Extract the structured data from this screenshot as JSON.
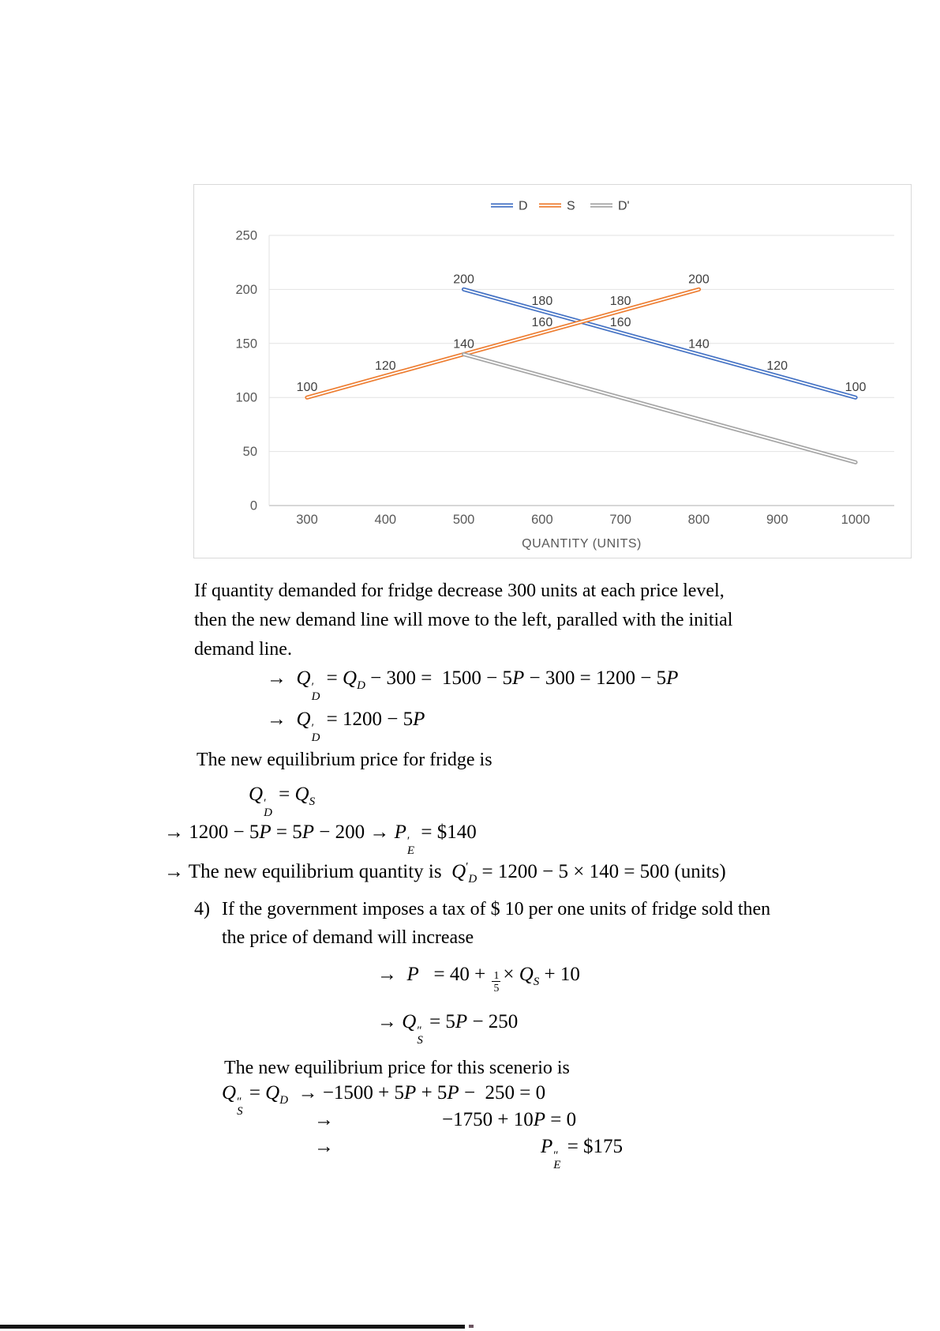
{
  "chart_data": {
    "type": "line",
    "title": "",
    "xlabel": "QUANTITY (UNITS)",
    "ylabel": "",
    "x_ticks": [
      300,
      400,
      500,
      600,
      700,
      800,
      900,
      1000
    ],
    "y_ticks": [
      0,
      50,
      100,
      150,
      200,
      250
    ],
    "ylim": [
      0,
      250
    ],
    "grid": "horizontal",
    "legend_position": "top",
    "colors": {
      "axis": "#BFBFBF",
      "gridline": "#E2E2E2",
      "tick_text": "#595959",
      "label_text": "#404040",
      "border": "#D9D9D9"
    },
    "legend": [
      {
        "label": "D",
        "color": "#4472C4"
      },
      {
        "label": "S",
        "color": "#ED7D31"
      },
      {
        "label": "D'",
        "color": "#A5A5A5"
      }
    ],
    "series": [
      {
        "name": "D",
        "color": "#4472C4",
        "points": [
          [
            500,
            200
          ],
          [
            600,
            180
          ],
          [
            700,
            160
          ],
          [
            800,
            140
          ],
          [
            900,
            120
          ],
          [
            1000,
            100
          ]
        ],
        "labels": [
          "200",
          "180",
          "160",
          "140",
          "120",
          "100"
        ]
      },
      {
        "name": "S",
        "color": "#ED7D31",
        "points": [
          [
            300,
            100
          ],
          [
            400,
            120
          ],
          [
            500,
            140
          ],
          [
            600,
            160
          ],
          [
            700,
            180
          ],
          [
            800,
            200
          ]
        ],
        "labels": [
          "100",
          "120",
          "140",
          "160",
          "180",
          "200"
        ]
      },
      {
        "name": "D'",
        "color": "#A5A5A5",
        "points": [
          [
            500,
            140
          ],
          [
            600,
            120
          ],
          [
            700,
            100
          ],
          [
            800,
            80
          ],
          [
            900,
            60
          ],
          [
            1000,
            40
          ]
        ],
        "labels": []
      }
    ]
  },
  "text": {
    "para1": [
      "If quantity demanded for fridge decrease 300 units at each price level,",
      "then the new demand line will move to the left, paralled with the initial",
      "demand line."
    ],
    "para2": "The new equilibrium price for fridge is",
    "para4_num": "4)",
    "para4_line1": "If the government imposes a tax of $ 10 per one units of fridge sold then",
    "para4_line2": "the price of demand will increase",
    "para5": "The new equilibrium price for this scenerio is"
  },
  "equations": {
    "arrow": [
      {
        "r": "→"
      }
    ],
    "e1": [
      {
        "r": "→  "
      },
      {
        "i": "Q"
      },
      {
        "st": [
          "′",
          "D"
        ]
      },
      {
        "r": " = "
      },
      {
        "i": "Q"
      },
      {
        "sub": "D"
      },
      {
        "r": " − 300 =  1500 − 5"
      },
      {
        "i": "P"
      },
      {
        "r": " − 300 = 1200 − 5"
      },
      {
        "i": "P"
      }
    ],
    "e2": [
      {
        "r": "→  "
      },
      {
        "i": "Q"
      },
      {
        "st": [
          "′",
          "D"
        ]
      },
      {
        "r": " = 1200 − 5"
      },
      {
        "i": "P"
      }
    ],
    "e3": [
      {
        "i": "Q"
      },
      {
        "st": [
          "′",
          "D"
        ]
      },
      {
        "r": " = "
      },
      {
        "i": "Q"
      },
      {
        "sub": "S"
      }
    ],
    "e4": [
      {
        "r": "→ 1200 − 5"
      },
      {
        "i": "P"
      },
      {
        "r": " = 5"
      },
      {
        "i": "P"
      },
      {
        "r": " − 200 → "
      },
      {
        "i": "P"
      },
      {
        "st": [
          "′",
          "E"
        ]
      },
      {
        "r": " = $140"
      }
    ],
    "e5": [
      {
        "r": "→ The new equilibrium quantity is  "
      },
      {
        "i": "Q"
      },
      {
        "sup": "′"
      },
      {
        "sub": "D"
      },
      {
        "r": " = 1200 − 5 × 140 = 500 (units)"
      }
    ],
    "e6": [
      {
        "r": "→  "
      },
      {
        "i": "P"
      },
      {
        "r": "   = 40 + "
      },
      {
        "fr": [
          "1",
          "5"
        ]
      },
      {
        "r": "× "
      },
      {
        "i": "Q"
      },
      {
        "sub": "S"
      },
      {
        "r": " + 10"
      }
    ],
    "e7": [
      {
        "r": "→ "
      },
      {
        "i": "Q"
      },
      {
        "st": [
          "″",
          "S"
        ]
      },
      {
        "r": " = 5"
      },
      {
        "i": "P"
      },
      {
        "r": " − 250"
      }
    ],
    "e8": [
      {
        "i": "Q"
      },
      {
        "st": [
          "″",
          "S"
        ]
      },
      {
        "r": " = "
      },
      {
        "i": "Q"
      },
      {
        "sub": "D"
      },
      {
        "r": "  → −1500 + 5"
      },
      {
        "i": "P"
      },
      {
        "r": " + 5"
      },
      {
        "i": "P"
      },
      {
        "r": " −  250 = 0"
      }
    ],
    "e9": [
      {
        "r": "−1750 + 10"
      },
      {
        "i": "P"
      },
      {
        "r": " = 0"
      }
    ],
    "e10": [
      {
        "i": "P"
      },
      {
        "st": [
          "″",
          "E"
        ]
      },
      {
        "r": " = $175"
      }
    ]
  }
}
